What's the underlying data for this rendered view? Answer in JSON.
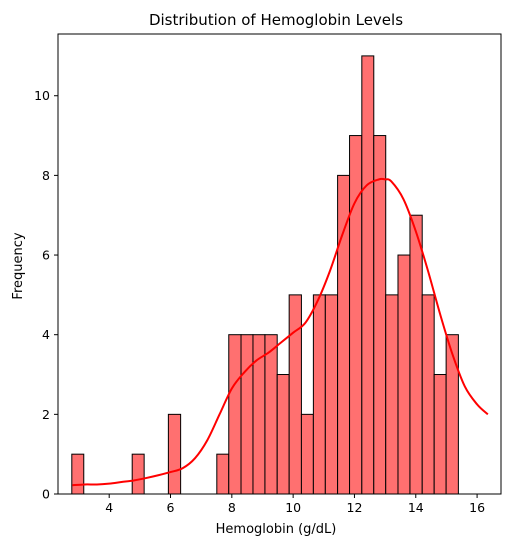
{
  "chart_data": {
    "type": "histogram",
    "title": "Distribution of Hemoglobin Levels",
    "xlabel": "Hemoglobin (g/dL)",
    "ylabel": "Frequency",
    "xlim": [
      2.33,
      16.78
    ],
    "ylim": [
      0,
      11.55
    ],
    "xticks": [
      4,
      6,
      8,
      10,
      12,
      14,
      16
    ],
    "yticks": [
      0,
      2,
      4,
      6,
      8,
      10
    ],
    "bins": [
      {
        "x0": 2.78,
        "x1": 3.17,
        "count": 1
      },
      {
        "x0": 3.17,
        "x1": 3.57,
        "count": 0
      },
      {
        "x0": 3.57,
        "x1": 3.96,
        "count": 0
      },
      {
        "x0": 3.96,
        "x1": 4.36,
        "count": 0
      },
      {
        "x0": 4.36,
        "x1": 4.75,
        "count": 0
      },
      {
        "x0": 4.75,
        "x1": 5.14,
        "count": 1
      },
      {
        "x0": 5.14,
        "x1": 5.54,
        "count": 0
      },
      {
        "x0": 5.54,
        "x1": 5.93,
        "count": 0
      },
      {
        "x0": 5.93,
        "x1": 6.33,
        "count": 2
      },
      {
        "x0": 6.33,
        "x1": 6.72,
        "count": 0
      },
      {
        "x0": 6.72,
        "x1": 7.11,
        "count": 0
      },
      {
        "x0": 7.11,
        "x1": 7.51,
        "count": 0
      },
      {
        "x0": 7.51,
        "x1": 7.9,
        "count": 1
      },
      {
        "x0": 7.9,
        "x1": 8.3,
        "count": 4
      },
      {
        "x0": 8.3,
        "x1": 8.69,
        "count": 4
      },
      {
        "x0": 8.69,
        "x1": 9.08,
        "count": 4
      },
      {
        "x0": 9.08,
        "x1": 9.48,
        "count": 4
      },
      {
        "x0": 9.48,
        "x1": 9.87,
        "count": 3
      },
      {
        "x0": 9.87,
        "x1": 10.27,
        "count": 5
      },
      {
        "x0": 10.27,
        "x1": 10.66,
        "count": 2
      },
      {
        "x0": 10.66,
        "x1": 11.05,
        "count": 5
      },
      {
        "x0": 11.05,
        "x1": 11.45,
        "count": 5
      },
      {
        "x0": 11.45,
        "x1": 11.84,
        "count": 8
      },
      {
        "x0": 11.84,
        "x1": 12.24,
        "count": 9
      },
      {
        "x0": 12.24,
        "x1": 12.63,
        "count": 11
      },
      {
        "x0": 12.63,
        "x1": 13.02,
        "count": 9
      },
      {
        "x0": 13.02,
        "x1": 13.42,
        "count": 5
      },
      {
        "x0": 13.42,
        "x1": 13.81,
        "count": 6
      },
      {
        "x0": 13.81,
        "x1": 14.21,
        "count": 7
      },
      {
        "x0": 14.21,
        "x1": 14.6,
        "count": 5
      },
      {
        "x0": 14.6,
        "x1": 14.99,
        "count": 3
      },
      {
        "x0": 14.99,
        "x1": 15.39,
        "count": 4
      }
    ],
    "kde": {
      "x": [
        2.8,
        3.2,
        3.6,
        4.0,
        4.4,
        4.8,
        5.2,
        5.6,
        6.0,
        6.4,
        6.8,
        7.2,
        7.6,
        8.0,
        8.4,
        8.8,
        9.2,
        9.6,
        10.0,
        10.4,
        10.8,
        11.2,
        11.6,
        12.0,
        12.4,
        12.8,
        13.0,
        13.2,
        13.6,
        14.0,
        14.4,
        14.8,
        15.2,
        15.6,
        16.0,
        16.35
      ],
      "y": [
        0.22,
        0.24,
        0.24,
        0.26,
        0.3,
        0.34,
        0.4,
        0.47,
        0.55,
        0.65,
        0.9,
        1.35,
        2.0,
        2.65,
        3.05,
        3.35,
        3.55,
        3.8,
        4.05,
        4.3,
        4.85,
        5.6,
        6.5,
        7.3,
        7.75,
        7.9,
        7.9,
        7.85,
        7.4,
        6.6,
        5.6,
        4.5,
        3.5,
        2.7,
        2.25,
        2.0
      ]
    },
    "bar_color": "#ff7070",
    "bar_edge_color": "#000000",
    "kde_color": "#ff0000",
    "grid": false,
    "legend": false
  }
}
